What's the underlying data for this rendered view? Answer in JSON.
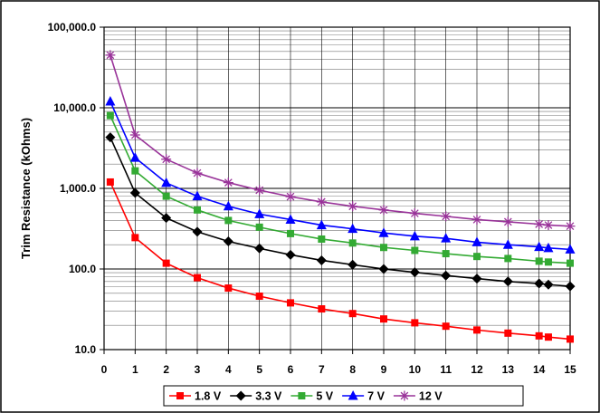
{
  "chart_data": {
    "type": "line",
    "title": "",
    "xlabel": "",
    "ylabel": "Trim Resistance (kOhms)",
    "xlim": [
      0,
      15
    ],
    "ylim": [
      10,
      100000
    ],
    "y_scale": "log",
    "grid": true,
    "legend_position": "bottom",
    "x_ticks": [
      "0",
      "1",
      "2",
      "3",
      "4",
      "5",
      "6",
      "7",
      "8",
      "9",
      "10",
      "11",
      "12",
      "13",
      "14",
      "15"
    ],
    "y_ticks": [
      "10.0",
      "100.0",
      "1,000.0",
      "10,000.0",
      "100,000.0"
    ],
    "series": [
      {
        "name": "1.8 V",
        "color": "#ff0000",
        "marker": "square",
        "x": [
          0.2,
          1,
          2,
          3,
          4,
          5,
          6,
          7,
          8,
          9,
          10,
          11,
          12,
          13,
          14,
          14.3,
          15
        ],
        "y": [
          1200,
          245,
          118,
          78,
          58,
          46,
          38,
          32,
          28,
          24,
          21.5,
          19.5,
          17.5,
          16,
          14.8,
          14.3,
          13.5
        ]
      },
      {
        "name": "3.3 V",
        "color": "#000000",
        "marker": "diamond",
        "x": [
          0.2,
          1,
          2,
          3,
          4,
          5,
          6,
          7,
          8,
          9,
          10,
          11,
          12,
          13,
          14,
          14.3,
          15
        ],
        "y": [
          4300,
          880,
          430,
          290,
          220,
          180,
          150,
          128,
          113,
          100,
          91,
          83,
          76,
          70,
          66,
          64,
          61
        ]
      },
      {
        "name": "5 V",
        "color": "#33aa33",
        "marker": "square",
        "x": [
          0.2,
          1,
          2,
          3,
          4,
          5,
          6,
          7,
          8,
          9,
          10,
          11,
          12,
          13,
          14,
          14.3,
          15
        ],
        "y": [
          8000,
          1650,
          800,
          540,
          400,
          330,
          275,
          235,
          210,
          185,
          170,
          155,
          143,
          135,
          125,
          122,
          118
        ]
      },
      {
        "name": "7 V",
        "color": "#0000ff",
        "marker": "triangle",
        "x": [
          0.2,
          1,
          2,
          3,
          4,
          5,
          6,
          7,
          8,
          9,
          10,
          11,
          12,
          13,
          14,
          14.3,
          15
        ],
        "y": [
          12000,
          2400,
          1170,
          800,
          600,
          480,
          410,
          350,
          315,
          280,
          255,
          240,
          215,
          200,
          188,
          182,
          175
        ]
      },
      {
        "name": "12 V",
        "color": "#993399",
        "marker": "star",
        "x": [
          0.2,
          1,
          2,
          3,
          4,
          5,
          6,
          7,
          8,
          9,
          10,
          11,
          12,
          13,
          14,
          14.3,
          15
        ],
        "y": [
          45000,
          4600,
          2300,
          1550,
          1180,
          950,
          790,
          680,
          600,
          540,
          490,
          450,
          410,
          385,
          360,
          350,
          340
        ]
      }
    ]
  }
}
